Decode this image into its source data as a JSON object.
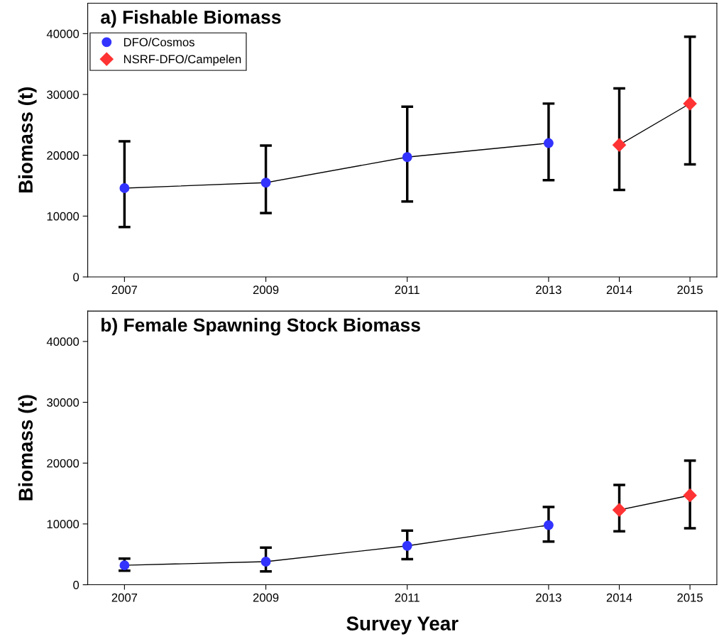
{
  "chart_data": [
    {
      "type": "line",
      "title": "a) Fishable Biomass",
      "ylabel": "Biomass (t)",
      "xlim": [
        2006.48,
        2015.38
      ],
      "xticks": [
        2007,
        2009,
        2011,
        2013,
        2014,
        2015
      ],
      "ylim": [
        0,
        45000
      ],
      "yticks": [
        0,
        10000,
        20000,
        30000,
        40000
      ],
      "grid": false,
      "legend": "top left",
      "series": [
        {
          "name": "DFO/Cosmos",
          "color": "#3333ff",
          "marker": "circle",
          "x": [
            2007,
            2009,
            2011,
            2013
          ],
          "values": [
            14600,
            15500,
            19700,
            22000
          ],
          "errors": [
            [
              8200,
              22300
            ],
            [
              10500,
              21600
            ],
            [
              12400,
              28000
            ],
            [
              15900,
              28500
            ]
          ]
        },
        {
          "name": "NSRF-DFO/Campelen",
          "color": "#ff3333",
          "marker": "diamond",
          "x": [
            2014,
            2015
          ],
          "values": [
            21700,
            28500
          ],
          "errors": [
            [
              14300,
              31000
            ],
            [
              18500,
              39500
            ]
          ]
        }
      ]
    },
    {
      "type": "line",
      "title": "b) Female Spawning Stock Biomass",
      "ylabel": "Biomass (t)",
      "xlabel": "Survey Year",
      "xlim": [
        2006.48,
        2015.38
      ],
      "xticks": [
        2007,
        2009,
        2011,
        2013,
        2014,
        2015
      ],
      "ylim": [
        0,
        45000
      ],
      "yticks": [
        0,
        10000,
        20000,
        30000,
        40000
      ],
      "grid": false,
      "legend": false,
      "series": [
        {
          "color": "#3333ff",
          "marker": "circle",
          "x": [
            2007,
            2009,
            2011,
            2013
          ],
          "values": [
            3200,
            3800,
            6400,
            9800
          ],
          "errors": [
            [
              2300,
              4300
            ],
            [
              2200,
              6100
            ],
            [
              4200,
              8900
            ],
            [
              7100,
              12800
            ]
          ]
        },
        {
          "color": "#ff3333",
          "marker": "diamond",
          "x": [
            2014,
            2015
          ],
          "values": [
            12300,
            14700
          ],
          "errors": [
            [
              8800,
              16400
            ],
            [
              9300,
              20400
            ]
          ]
        }
      ]
    }
  ]
}
